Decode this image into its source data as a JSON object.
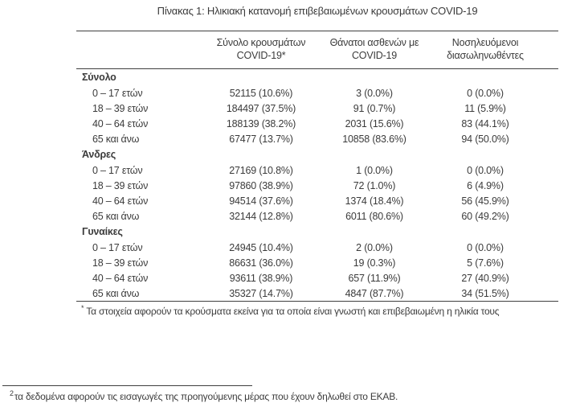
{
  "title": "Πίνακας 1: Ηλικιακή κατανομή επιβεβαιωμένων κρουσμάτων COVID-19",
  "table": {
    "columns": [
      {
        "line1": "Σύνολο κρουσμάτων",
        "line2": "COVID-19*"
      },
      {
        "line1": "Θάνατοι ασθενών με",
        "line2": "COVID-19"
      },
      {
        "line1": "Νοσηλευόμενοι",
        "line2": "διασωληνωθέντες"
      }
    ],
    "sections": [
      {
        "name": "Σύνολο",
        "rows": [
          {
            "label": "0 – 17 ετών",
            "cases": "52115 (10.6%)",
            "deaths": "3 (0.0%)",
            "intubated": "0 (0.0%)"
          },
          {
            "label": "18 – 39 ετών",
            "cases": "184497 (37.5%)",
            "deaths": "91 (0.7%)",
            "intubated": "11 (5.9%)"
          },
          {
            "label": "40 – 64 ετών",
            "cases": "188139 (38.2%)",
            "deaths": "2031 (15.6%)",
            "intubated": "83 (44.1%)"
          },
          {
            "label": "65 και άνω",
            "cases": "67477 (13.7%)",
            "deaths": "10858 (83.6%)",
            "intubated": "94 (50.0%)"
          }
        ]
      },
      {
        "name": "Άνδρες",
        "rows": [
          {
            "label": "0 – 17 ετών",
            "cases": "27169 (10.8%)",
            "deaths": "1 (0.0%)",
            "intubated": "0 (0.0%)"
          },
          {
            "label": "18 – 39 ετών",
            "cases": "97860 (38.9%)",
            "deaths": "72 (1.0%)",
            "intubated": "6 (4.9%)"
          },
          {
            "label": "40 – 64 ετών",
            "cases": "94514 (37.6%)",
            "deaths": "1374 (18.4%)",
            "intubated": "56 (45.9%)"
          },
          {
            "label": "65 και άνω",
            "cases": "32144 (12.8%)",
            "deaths": "6011 (80.6%)",
            "intubated": "60 (49.2%)"
          }
        ]
      },
      {
        "name": "Γυναίκες",
        "rows": [
          {
            "label": "0 – 17 ετών",
            "cases": "24945 (10.4%)",
            "deaths": "2 (0.0%)",
            "intubated": "0 (0.0%)"
          },
          {
            "label": "18 – 39 ετών",
            "cases": "86631 (36.0%)",
            "deaths": "19 (0.3%)",
            "intubated": "5 (7.6%)"
          },
          {
            "label": "40 – 64 ετών",
            "cases": "93611 (38.9%)",
            "deaths": "657 (11.9%)",
            "intubated": "27 (40.9%)"
          },
          {
            "label": "65 και άνω",
            "cases": "35327 (14.7%)",
            "deaths": "4847 (87.7%)",
            "intubated": "34 (51.5%)"
          }
        ]
      }
    ],
    "footnote_marker": "*",
    "footnote": "Τα στοιχεία αφορούν τα κρούσματα εκείνα για τα οποία είναι γνωστή και επιβεβαιωμένη η ηλικία τους"
  },
  "page_footnote": {
    "marker": "2",
    "text": "τα δεδομένα αφορούν τις εισαγωγές της προηγούμενης μέρας που έχουν δηλωθεί στο ΕΚΑΒ."
  },
  "colors": {
    "text": "#3b3b3b",
    "rule": "#3f3f3f",
    "background": "#ffffff"
  }
}
